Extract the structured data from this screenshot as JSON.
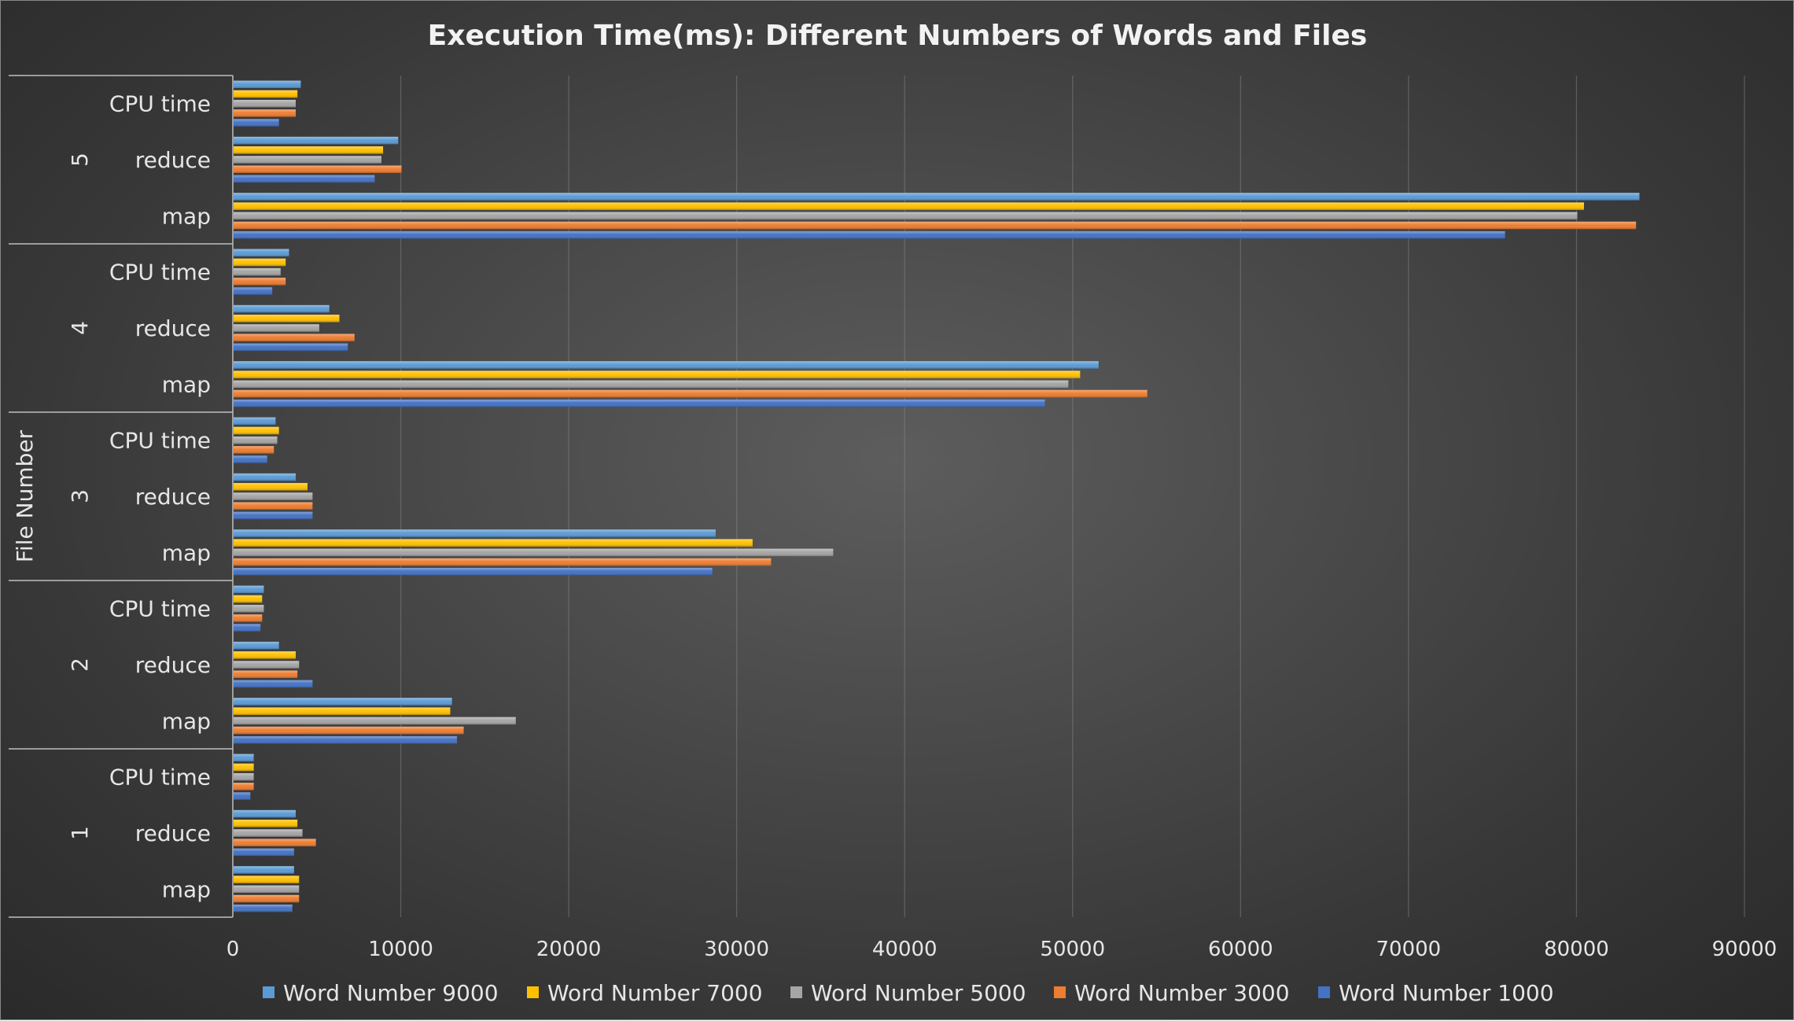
{
  "chart_data": {
    "type": "bar",
    "orientation": "horizontal",
    "title": "Execution Time(ms): Different Numbers of Words and Files",
    "ylabel": "File Number",
    "xlabel": "",
    "xlim": [
      0,
      90000
    ],
    "xticks": [
      0,
      10000,
      20000,
      30000,
      40000,
      50000,
      60000,
      70000,
      80000,
      90000
    ],
    "grid": true,
    "legend_position": "bottom",
    "groups": [
      "1",
      "2",
      "3",
      "4",
      "5"
    ],
    "categories": [
      "map",
      "reduce",
      "CPU time"
    ],
    "series": [
      {
        "name": "Word Number 9000",
        "color": "#5b9bd5",
        "values": {
          "1": {
            "map": 3600,
            "reduce": 3700,
            "CPU time": 1200
          },
          "2": {
            "map": 13000,
            "reduce": 2700,
            "CPU time": 1800
          },
          "3": {
            "map": 28700,
            "reduce": 3700,
            "CPU time": 2500
          },
          "4": {
            "map": 51500,
            "reduce": 5700,
            "CPU time": 3300
          },
          "5": {
            "map": 83700,
            "reduce": 9800,
            "CPU time": 4000
          }
        }
      },
      {
        "name": "Word Number 7000",
        "color": "#ffc000",
        "values": {
          "1": {
            "map": 3900,
            "reduce": 3800,
            "CPU time": 1200
          },
          "2": {
            "map": 12900,
            "reduce": 3700,
            "CPU time": 1700
          },
          "3": {
            "map": 30900,
            "reduce": 4400,
            "CPU time": 2700
          },
          "4": {
            "map": 50400,
            "reduce": 6300,
            "CPU time": 3100
          },
          "5": {
            "map": 80400,
            "reduce": 8900,
            "CPU time": 3800
          }
        }
      },
      {
        "name": "Word Number 5000",
        "color": "#a5a5a5",
        "values": {
          "1": {
            "map": 3900,
            "reduce": 4100,
            "CPU time": 1200
          },
          "2": {
            "map": 16800,
            "reduce": 3900,
            "CPU time": 1800
          },
          "3": {
            "map": 35700,
            "reduce": 4700,
            "CPU time": 2600
          },
          "4": {
            "map": 49700,
            "reduce": 5100,
            "CPU time": 2800
          },
          "5": {
            "map": 80000,
            "reduce": 8800,
            "CPU time": 3700
          }
        }
      },
      {
        "name": "Word Number 3000",
        "color": "#ed7d31",
        "values": {
          "1": {
            "map": 3900,
            "reduce": 4900,
            "CPU time": 1200
          },
          "2": {
            "map": 13700,
            "reduce": 3800,
            "CPU time": 1700
          },
          "3": {
            "map": 32000,
            "reduce": 4700,
            "CPU time": 2400
          },
          "4": {
            "map": 54400,
            "reduce": 7200,
            "CPU time": 3100
          },
          "5": {
            "map": 83500,
            "reduce": 10000,
            "CPU time": 3700
          }
        }
      },
      {
        "name": "Word Number 1000",
        "color": "#4472c4",
        "values": {
          "1": {
            "map": 3500,
            "reduce": 3600,
            "CPU time": 1000
          },
          "2": {
            "map": 13300,
            "reduce": 4700,
            "CPU time": 1600
          },
          "3": {
            "map": 28500,
            "reduce": 4700,
            "CPU time": 2000
          },
          "4": {
            "map": 48300,
            "reduce": 6800,
            "CPU time": 2300
          },
          "5": {
            "map": 75700,
            "reduce": 8400,
            "CPU time": 2700
          }
        }
      }
    ]
  }
}
